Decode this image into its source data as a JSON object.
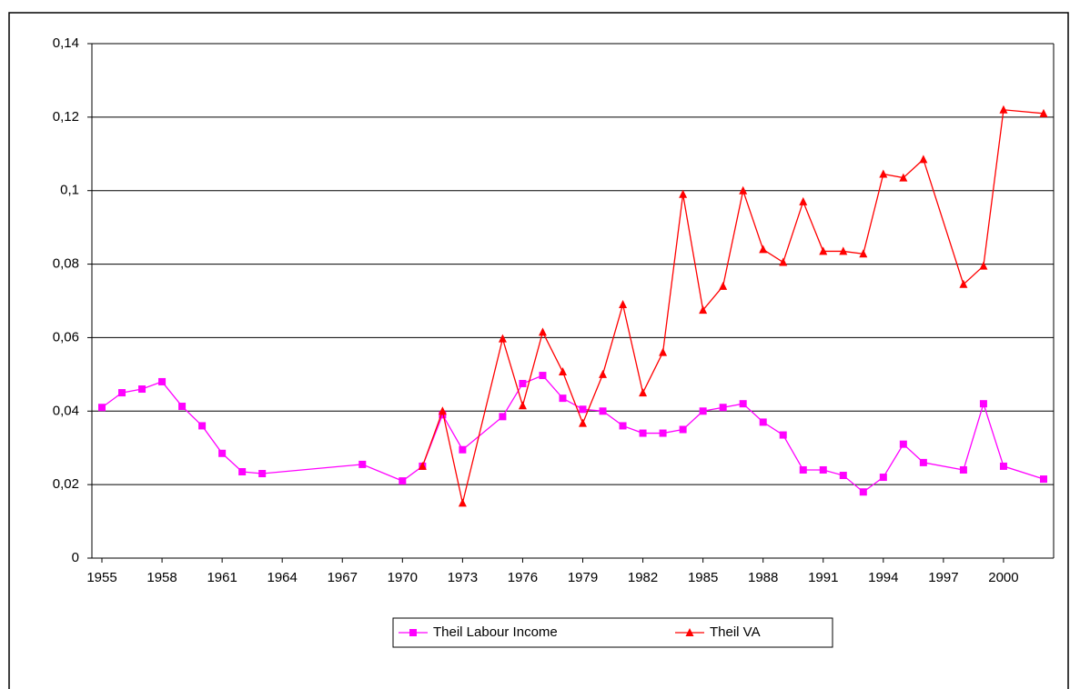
{
  "chart_data": {
    "type": "line",
    "xlim": [
      1954.5,
      2002.5
    ],
    "xticks": [
      1955,
      1958,
      1961,
      1964,
      1967,
      1970,
      1973,
      1976,
      1979,
      1982,
      1985,
      1988,
      1991,
      1994,
      1997,
      2000
    ],
    "ylim": [
      0,
      0.14
    ],
    "yticks": [
      0,
      {
        "value": 0.02,
        "label": "0,02"
      },
      {
        "value": 0.04,
        "label": "0,04"
      },
      {
        "value": 0.06,
        "label": "0,06"
      },
      {
        "value": 0.08,
        "label": "0,08"
      },
      {
        "value": 0.1,
        "label": "0,1"
      },
      {
        "value": 0.12,
        "label": "0,12"
      },
      {
        "value": 0.14,
        "label": "0,14"
      }
    ],
    "grid": true,
    "legend": "bottom",
    "series": [
      {
        "name": "Theil Labour Income",
        "color": "#ff00ff",
        "marker": "square",
        "x": [
          1955,
          1956,
          1957,
          1958,
          1959,
          1960,
          1961,
          1962,
          1963,
          1968,
          1970,
          1971,
          1972,
          1973,
          1975,
          1976,
          1977,
          1978,
          1979,
          1980,
          1981,
          1982,
          1983,
          1984,
          1985,
          1986,
          1987,
          1988,
          1989,
          1990,
          1991,
          1992,
          1993,
          1994,
          1995,
          1996,
          1998,
          1999,
          2000,
          2002
        ],
        "values": [
          0.041,
          0.045,
          0.046,
          0.048,
          0.0413,
          0.036,
          0.0285,
          0.0235,
          0.023,
          0.0255,
          0.021,
          0.025,
          0.039,
          0.0295,
          0.0385,
          0.0475,
          0.0497,
          0.0435,
          0.0405,
          0.04,
          0.036,
          0.034,
          0.034,
          0.035,
          0.04,
          0.041,
          0.042,
          0.037,
          0.0335,
          0.024,
          0.024,
          0.0225,
          0.018,
          0.022,
          0.031,
          0.026,
          0.024,
          0.042,
          0.025,
          0.0215
        ]
      },
      {
        "name": "Theil VA",
        "color": "#ff0000",
        "marker": "triangle",
        "x": [
          1971,
          1972,
          1973,
          1975,
          1976,
          1977,
          1978,
          1979,
          1980,
          1981,
          1982,
          1983,
          1984,
          1985,
          1986,
          1987,
          1988,
          1989,
          1990,
          1991,
          1992,
          1993,
          1994,
          1995,
          1996,
          1998,
          1999,
          2000,
          2002
        ],
        "values": [
          0.025,
          0.04,
          0.015,
          0.0597,
          0.0415,
          0.0615,
          0.0507,
          0.0367,
          0.05,
          0.069,
          0.045,
          0.056,
          0.099,
          0.0675,
          0.074,
          0.1,
          0.084,
          0.0805,
          0.097,
          0.0835,
          0.0835,
          0.0828,
          0.1045,
          0.1035,
          0.1085,
          0.0745,
          0.0795,
          0.122,
          0.121
        ]
      }
    ]
  }
}
